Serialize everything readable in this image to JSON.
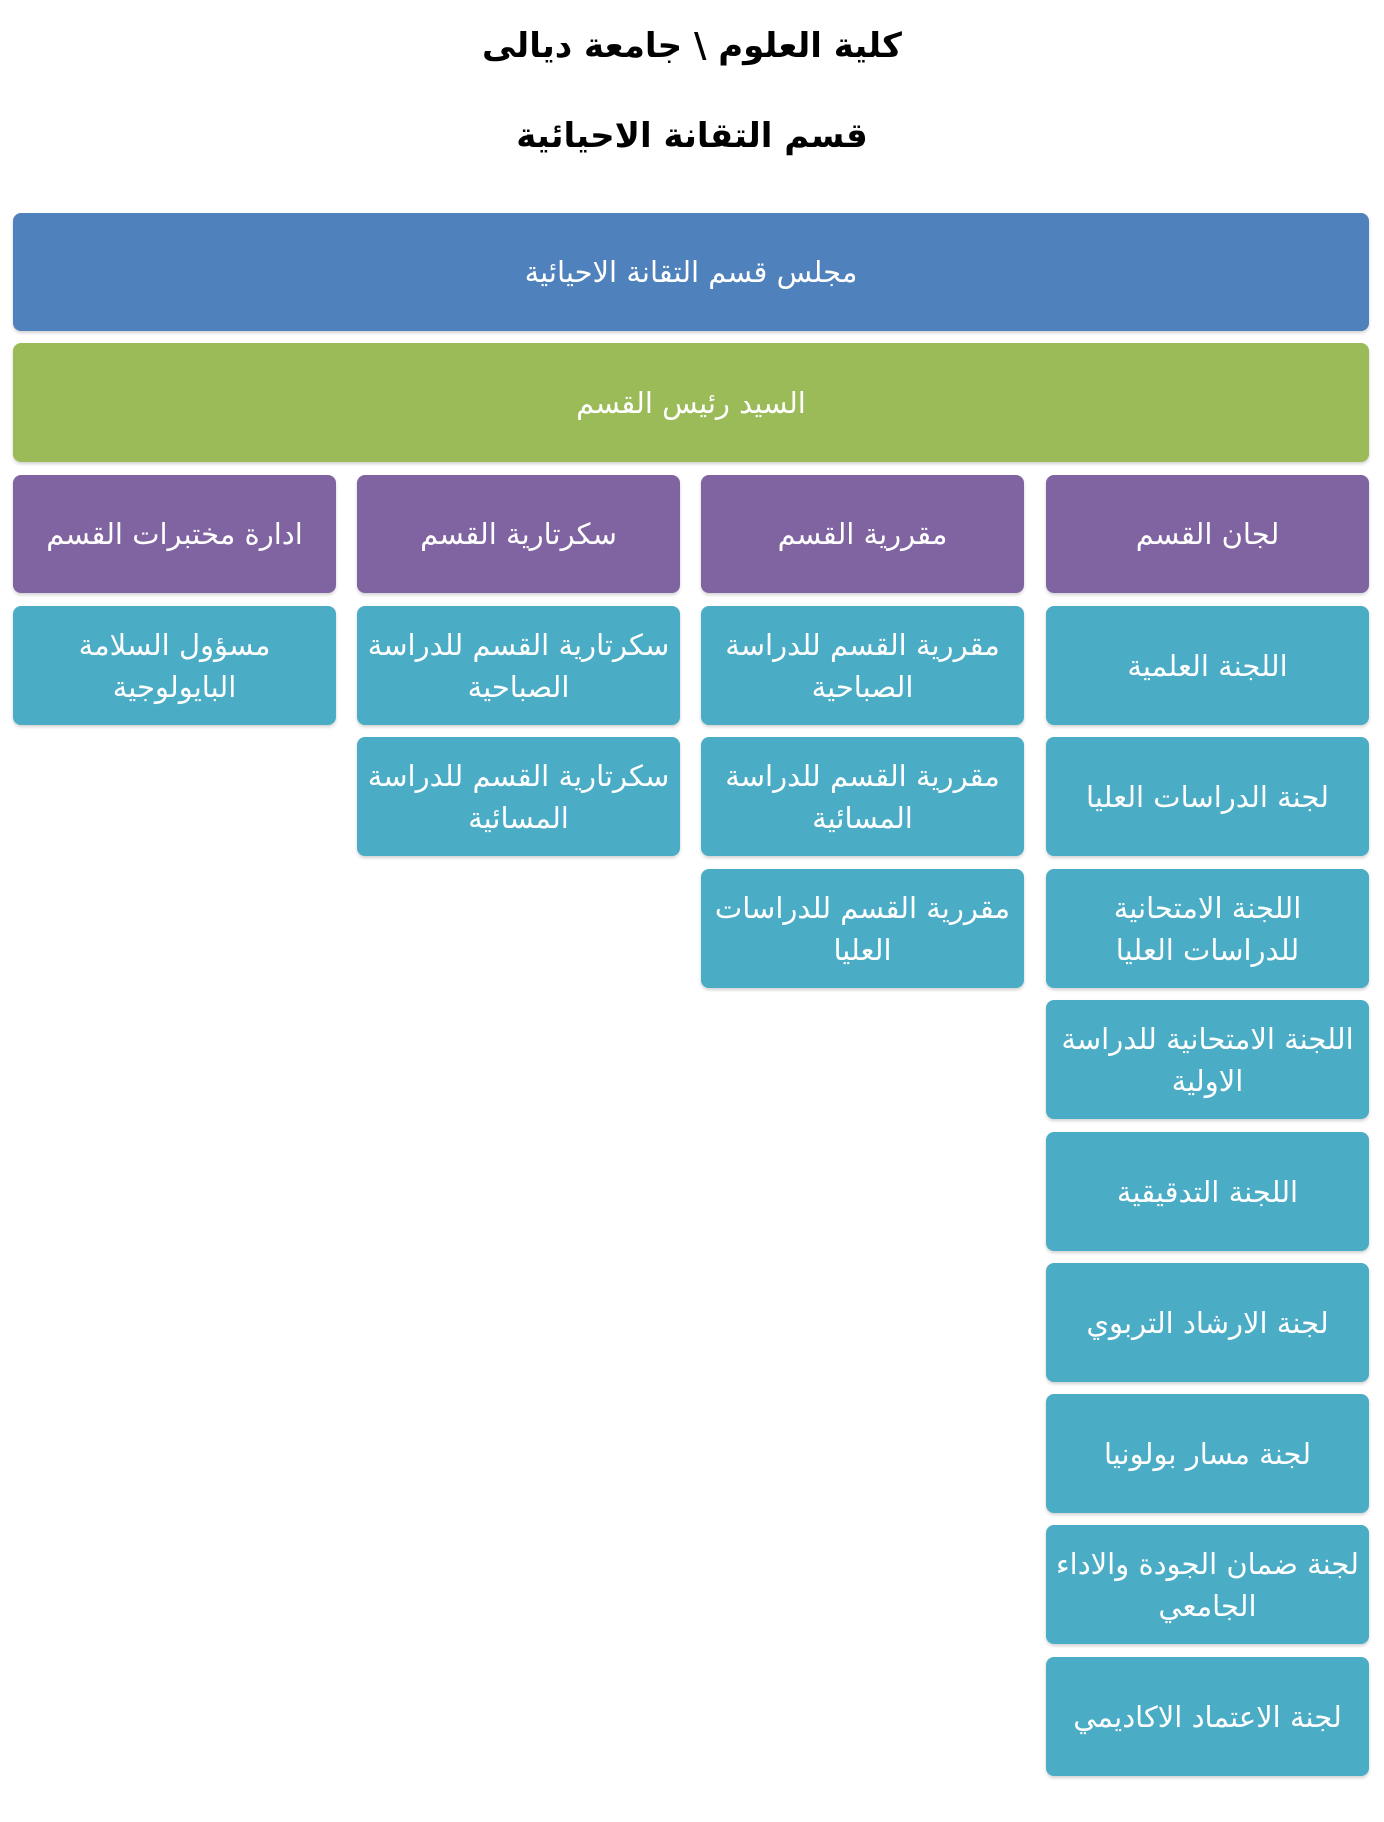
{
  "header": {
    "line1": "كلية العلوم \\ جامعة ديالى",
    "line2": "قسم التقانة الاحيائية"
  },
  "chart": {
    "council": "مجلس قسم التقانة الاحيائية",
    "head": "السيد رئيس القسم",
    "colors": {
      "council": "#4F81BD",
      "head": "#9BBB59",
      "branch": "#8064A2",
      "leaf": "#4BACC6"
    },
    "branches": [
      {
        "label": "لجان القسم",
        "children": [
          "اللجنة العلمية",
          "لجنة الدراسات العليا",
          "اللجنة الامتحانية للدراسات العليا",
          "اللجنة الامتحانية للدراسة الاولية",
          "اللجنة التدقيقية",
          "لجنة الارشاد التربوي",
          "لجنة مسار بولونيا",
          "لجنة ضمان الجودة والاداء الجامعي",
          "لجنة الاعتماد الاكاديمي"
        ]
      },
      {
        "label": "مقررية القسم",
        "children": [
          "مقررية القسم للدراسة الصباحية",
          "مقررية القسم للدراسة المسائية",
          "مقررية القسم للدراسات العليا"
        ]
      },
      {
        "label": "سكرتارية القسم",
        "children": [
          "سكرتارية القسم للدراسة الصباحية",
          "سكرتارية القسم للدراسة المسائية"
        ]
      },
      {
        "label": "ادارة مختبرات القسم",
        "children": [
          "مسؤول السلامة البايولوجية"
        ]
      }
    ]
  }
}
